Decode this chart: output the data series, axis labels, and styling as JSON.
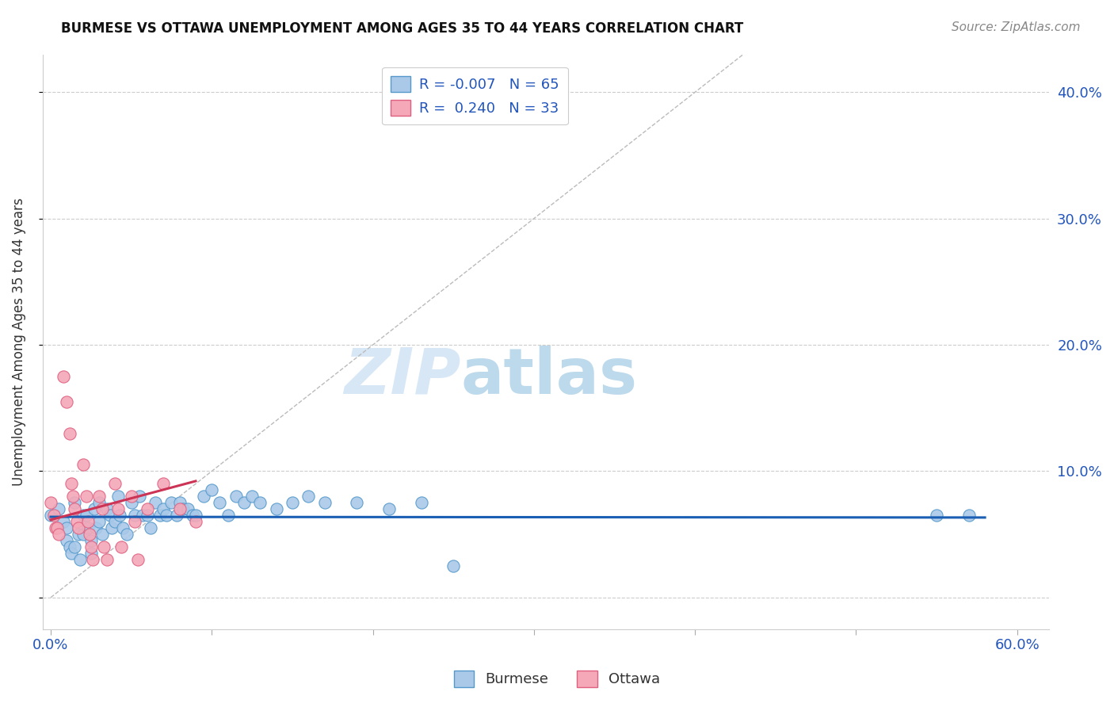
{
  "title": "BURMESE VS OTTAWA UNEMPLOYMENT AMONG AGES 35 TO 44 YEARS CORRELATION CHART",
  "source": "Source: ZipAtlas.com",
  "ylabel": "Unemployment Among Ages 35 to 44 years",
  "xlim": [
    -0.005,
    0.62
  ],
  "ylim": [
    -0.025,
    0.43
  ],
  "xticks": [
    0.0,
    0.1,
    0.2,
    0.3,
    0.4,
    0.5,
    0.6
  ],
  "yticks": [
    0.0,
    0.1,
    0.2,
    0.3,
    0.4
  ],
  "right_ytick_labels": [
    "",
    "10.0%",
    "20.0%",
    "30.0%",
    "40.0%"
  ],
  "xtick_labels": [
    "0.0%",
    "",
    "",
    "",
    "",
    "",
    "60.0%"
  ],
  "burmese_color": "#aac9e8",
  "ottawa_color": "#f4a8b8",
  "burmese_edge": "#5599cc",
  "ottawa_edge": "#e06080",
  "trend_blue_color": "#1a5fb4",
  "trend_pink_color": "#cc3355",
  "diagonal_color": "#bbbbbb",
  "R_burmese": -0.007,
  "N_burmese": 65,
  "R_ottawa": 0.24,
  "N_ottawa": 33,
  "burmese_x": [
    0.0,
    0.005,
    0.008,
    0.01,
    0.01,
    0.012,
    0.013,
    0.015,
    0.015,
    0.017,
    0.018,
    0.02,
    0.02,
    0.022,
    0.023,
    0.025,
    0.025,
    0.027,
    0.028,
    0.03,
    0.03,
    0.032,
    0.035,
    0.037,
    0.038,
    0.04,
    0.042,
    0.043,
    0.045,
    0.047,
    0.05,
    0.052,
    0.055,
    0.057,
    0.06,
    0.062,
    0.065,
    0.068,
    0.07,
    0.072,
    0.075,
    0.078,
    0.08,
    0.082,
    0.085,
    0.088,
    0.09,
    0.095,
    0.1,
    0.105,
    0.11,
    0.115,
    0.12,
    0.125,
    0.13,
    0.14,
    0.15,
    0.16,
    0.17,
    0.19,
    0.21,
    0.23,
    0.25,
    0.55,
    0.57
  ],
  "burmese_y": [
    0.065,
    0.07,
    0.06,
    0.055,
    0.045,
    0.04,
    0.035,
    0.075,
    0.04,
    0.05,
    0.03,
    0.065,
    0.05,
    0.065,
    0.055,
    0.045,
    0.035,
    0.07,
    0.055,
    0.075,
    0.06,
    0.05,
    0.07,
    0.065,
    0.055,
    0.06,
    0.08,
    0.065,
    0.055,
    0.05,
    0.075,
    0.065,
    0.08,
    0.065,
    0.065,
    0.055,
    0.075,
    0.065,
    0.07,
    0.065,
    0.075,
    0.065,
    0.075,
    0.07,
    0.07,
    0.065,
    0.065,
    0.08,
    0.085,
    0.075,
    0.065,
    0.08,
    0.075,
    0.08,
    0.075,
    0.07,
    0.075,
    0.08,
    0.075,
    0.075,
    0.07,
    0.075,
    0.025,
    0.065,
    0.065
  ],
  "ottawa_x": [
    0.0,
    0.002,
    0.003,
    0.004,
    0.005,
    0.008,
    0.01,
    0.012,
    0.013,
    0.014,
    0.015,
    0.016,
    0.017,
    0.02,
    0.022,
    0.023,
    0.024,
    0.025,
    0.026,
    0.03,
    0.032,
    0.033,
    0.035,
    0.04,
    0.042,
    0.044,
    0.05,
    0.052,
    0.054,
    0.06,
    0.07,
    0.08,
    0.09
  ],
  "ottawa_y": [
    0.075,
    0.065,
    0.055,
    0.055,
    0.05,
    0.175,
    0.155,
    0.13,
    0.09,
    0.08,
    0.07,
    0.06,
    0.055,
    0.105,
    0.08,
    0.06,
    0.05,
    0.04,
    0.03,
    0.08,
    0.07,
    0.04,
    0.03,
    0.09,
    0.07,
    0.04,
    0.08,
    0.06,
    0.03,
    0.07,
    0.09,
    0.07,
    0.06
  ],
  "watermark_zip": "ZIP",
  "watermark_atlas": "atlas",
  "background_color": "#ffffff",
  "grid_color": "#cccccc",
  "scatter_size": 120
}
